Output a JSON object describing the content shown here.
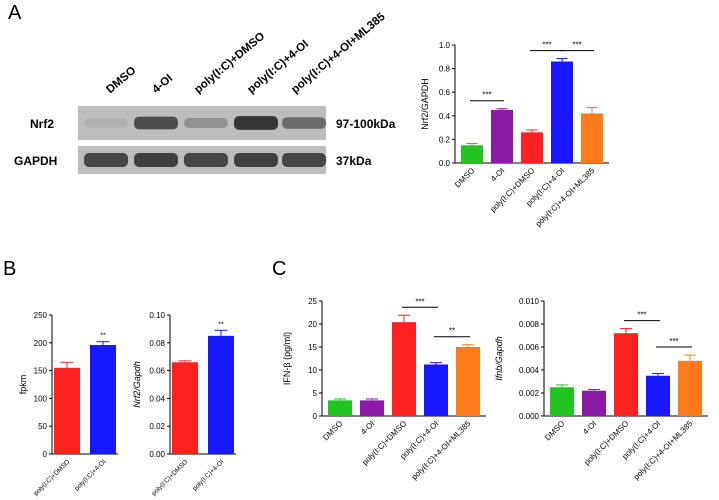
{
  "panels": {
    "a": "A",
    "b": "B",
    "c": "C"
  },
  "blot": {
    "lanes": [
      "DMSO",
      "4-OI",
      "poly(I:C)+DMSO",
      "poly(I:C)+4-OI",
      "poly(I:C)+4-OI+ML385"
    ],
    "rows": [
      {
        "protein": "Nrf2",
        "size": "97-100kDa",
        "intensities": [
          0.15,
          0.8,
          0.35,
          0.95,
          0.6
        ]
      },
      {
        "protein": "GAPDH",
        "size": "37kDa",
        "intensities": [
          0.85,
          0.9,
          0.85,
          0.88,
          0.85
        ]
      }
    ]
  },
  "chart_data": [
    {
      "id": "nrf2",
      "type": "bar",
      "categories": [
        "DMSO",
        "4-OI",
        "poly(I:C)+DMSO",
        "poly(I:C)+4-OI",
        "poly(I:C)+4-OI+ML385"
      ],
      "values": [
        0.15,
        0.45,
        0.26,
        0.86,
        0.42
      ],
      "errors": [
        0.015,
        0.01,
        0.02,
        0.025,
        0.05
      ],
      "colors": [
        "#22c422",
        "#8b1aa6",
        "#ff2020",
        "#1818ff",
        "#ff7a1a"
      ],
      "ylabel": "Nrf2/GAPDH",
      "ylim": [
        0,
        1.0
      ],
      "ticks": [
        "0.0",
        "0.2",
        "0.4",
        "0.6",
        "0.8",
        "1.0"
      ],
      "significance": [
        {
          "from": 0,
          "to": 1,
          "label": "***"
        },
        {
          "from": 2,
          "to": 3,
          "label": "***"
        },
        {
          "from": 3,
          "to": 4,
          "label": "***"
        }
      ]
    },
    {
      "id": "fpkm",
      "type": "bar",
      "categories": [
        "poly(I:C)+DMSO",
        "poly(I:C)+4-OI"
      ],
      "values": [
        155,
        196
      ],
      "errors": [
        10,
        6
      ],
      "colors": [
        "#ff2020",
        "#1818ff"
      ],
      "ylabel": "fpkm",
      "ylim": [
        0,
        250
      ],
      "ticks": [
        "0",
        "50",
        "100",
        "150",
        "200",
        "250"
      ],
      "annotations": [
        {
          "bar": 1,
          "label": "**"
        }
      ]
    },
    {
      "id": "nrf2-gapdh-ratio",
      "type": "bar",
      "categories": [
        "poly(I:C)+DMSO",
        "poly(I:C)+4-OI"
      ],
      "values": [
        0.066,
        0.085
      ],
      "errors": [
        0.001,
        0.004
      ],
      "colors": [
        "#ff2020",
        "#1818ff"
      ],
      "ylabel": "Nrf2/Gapdh",
      "ylim": [
        0,
        0.1
      ],
      "ticks": [
        "0.00",
        "0.02",
        "0.04",
        "0.06",
        "0.08",
        "0.10"
      ],
      "annotations": [
        {
          "bar": 1,
          "label": "**"
        }
      ]
    },
    {
      "id": "ifnb-protein",
      "type": "bar",
      "categories": [
        "DMSO",
        "4-OI",
        "poly(I:C)+DMSO",
        "poly(I:C)+4-OI",
        "poly(I:C)+4-OI+ML385"
      ],
      "values": [
        3.4,
        3.4,
        20.4,
        11.2,
        15.0
      ],
      "errors": [
        0.3,
        0.3,
        1.5,
        0.4,
        0.5
      ],
      "colors": [
        "#22c422",
        "#8b1aa6",
        "#ff2020",
        "#1818ff",
        "#ff7a1a"
      ],
      "ylabel": "IFN-β (pg/ml)",
      "ylim": [
        0,
        25
      ],
      "ticks": [
        "0",
        "5",
        "10",
        "15",
        "20",
        "25"
      ],
      "significance": [
        {
          "from": 2,
          "to": 3,
          "label": "***"
        },
        {
          "from": 3,
          "to": 4,
          "label": "**"
        }
      ]
    },
    {
      "id": "ifnb-gapdh",
      "type": "bar",
      "categories": [
        "DMSO",
        "4-OI",
        "poly(I:C)+DMSO",
        "poly(I:C)+4-OI",
        "poly(I:C)+4-OI+ML385"
      ],
      "values": [
        0.0025,
        0.0022,
        0.0072,
        0.0035,
        0.0048
      ],
      "errors": [
        0.0002,
        0.0001,
        0.0004,
        0.0002,
        0.0005
      ],
      "colors": [
        "#22c422",
        "#8b1aa6",
        "#ff2020",
        "#1818ff",
        "#ff7a1a"
      ],
      "ylabel": "Ifnb/Gapdh",
      "ylim": [
        0,
        0.01
      ],
      "ticks": [
        "0.000",
        "0.002",
        "0.004",
        "0.006",
        "0.008",
        "0.010"
      ],
      "significance": [
        {
          "from": 2,
          "to": 3,
          "label": "***"
        },
        {
          "from": 3,
          "to": 4,
          "label": "***"
        }
      ]
    }
  ]
}
